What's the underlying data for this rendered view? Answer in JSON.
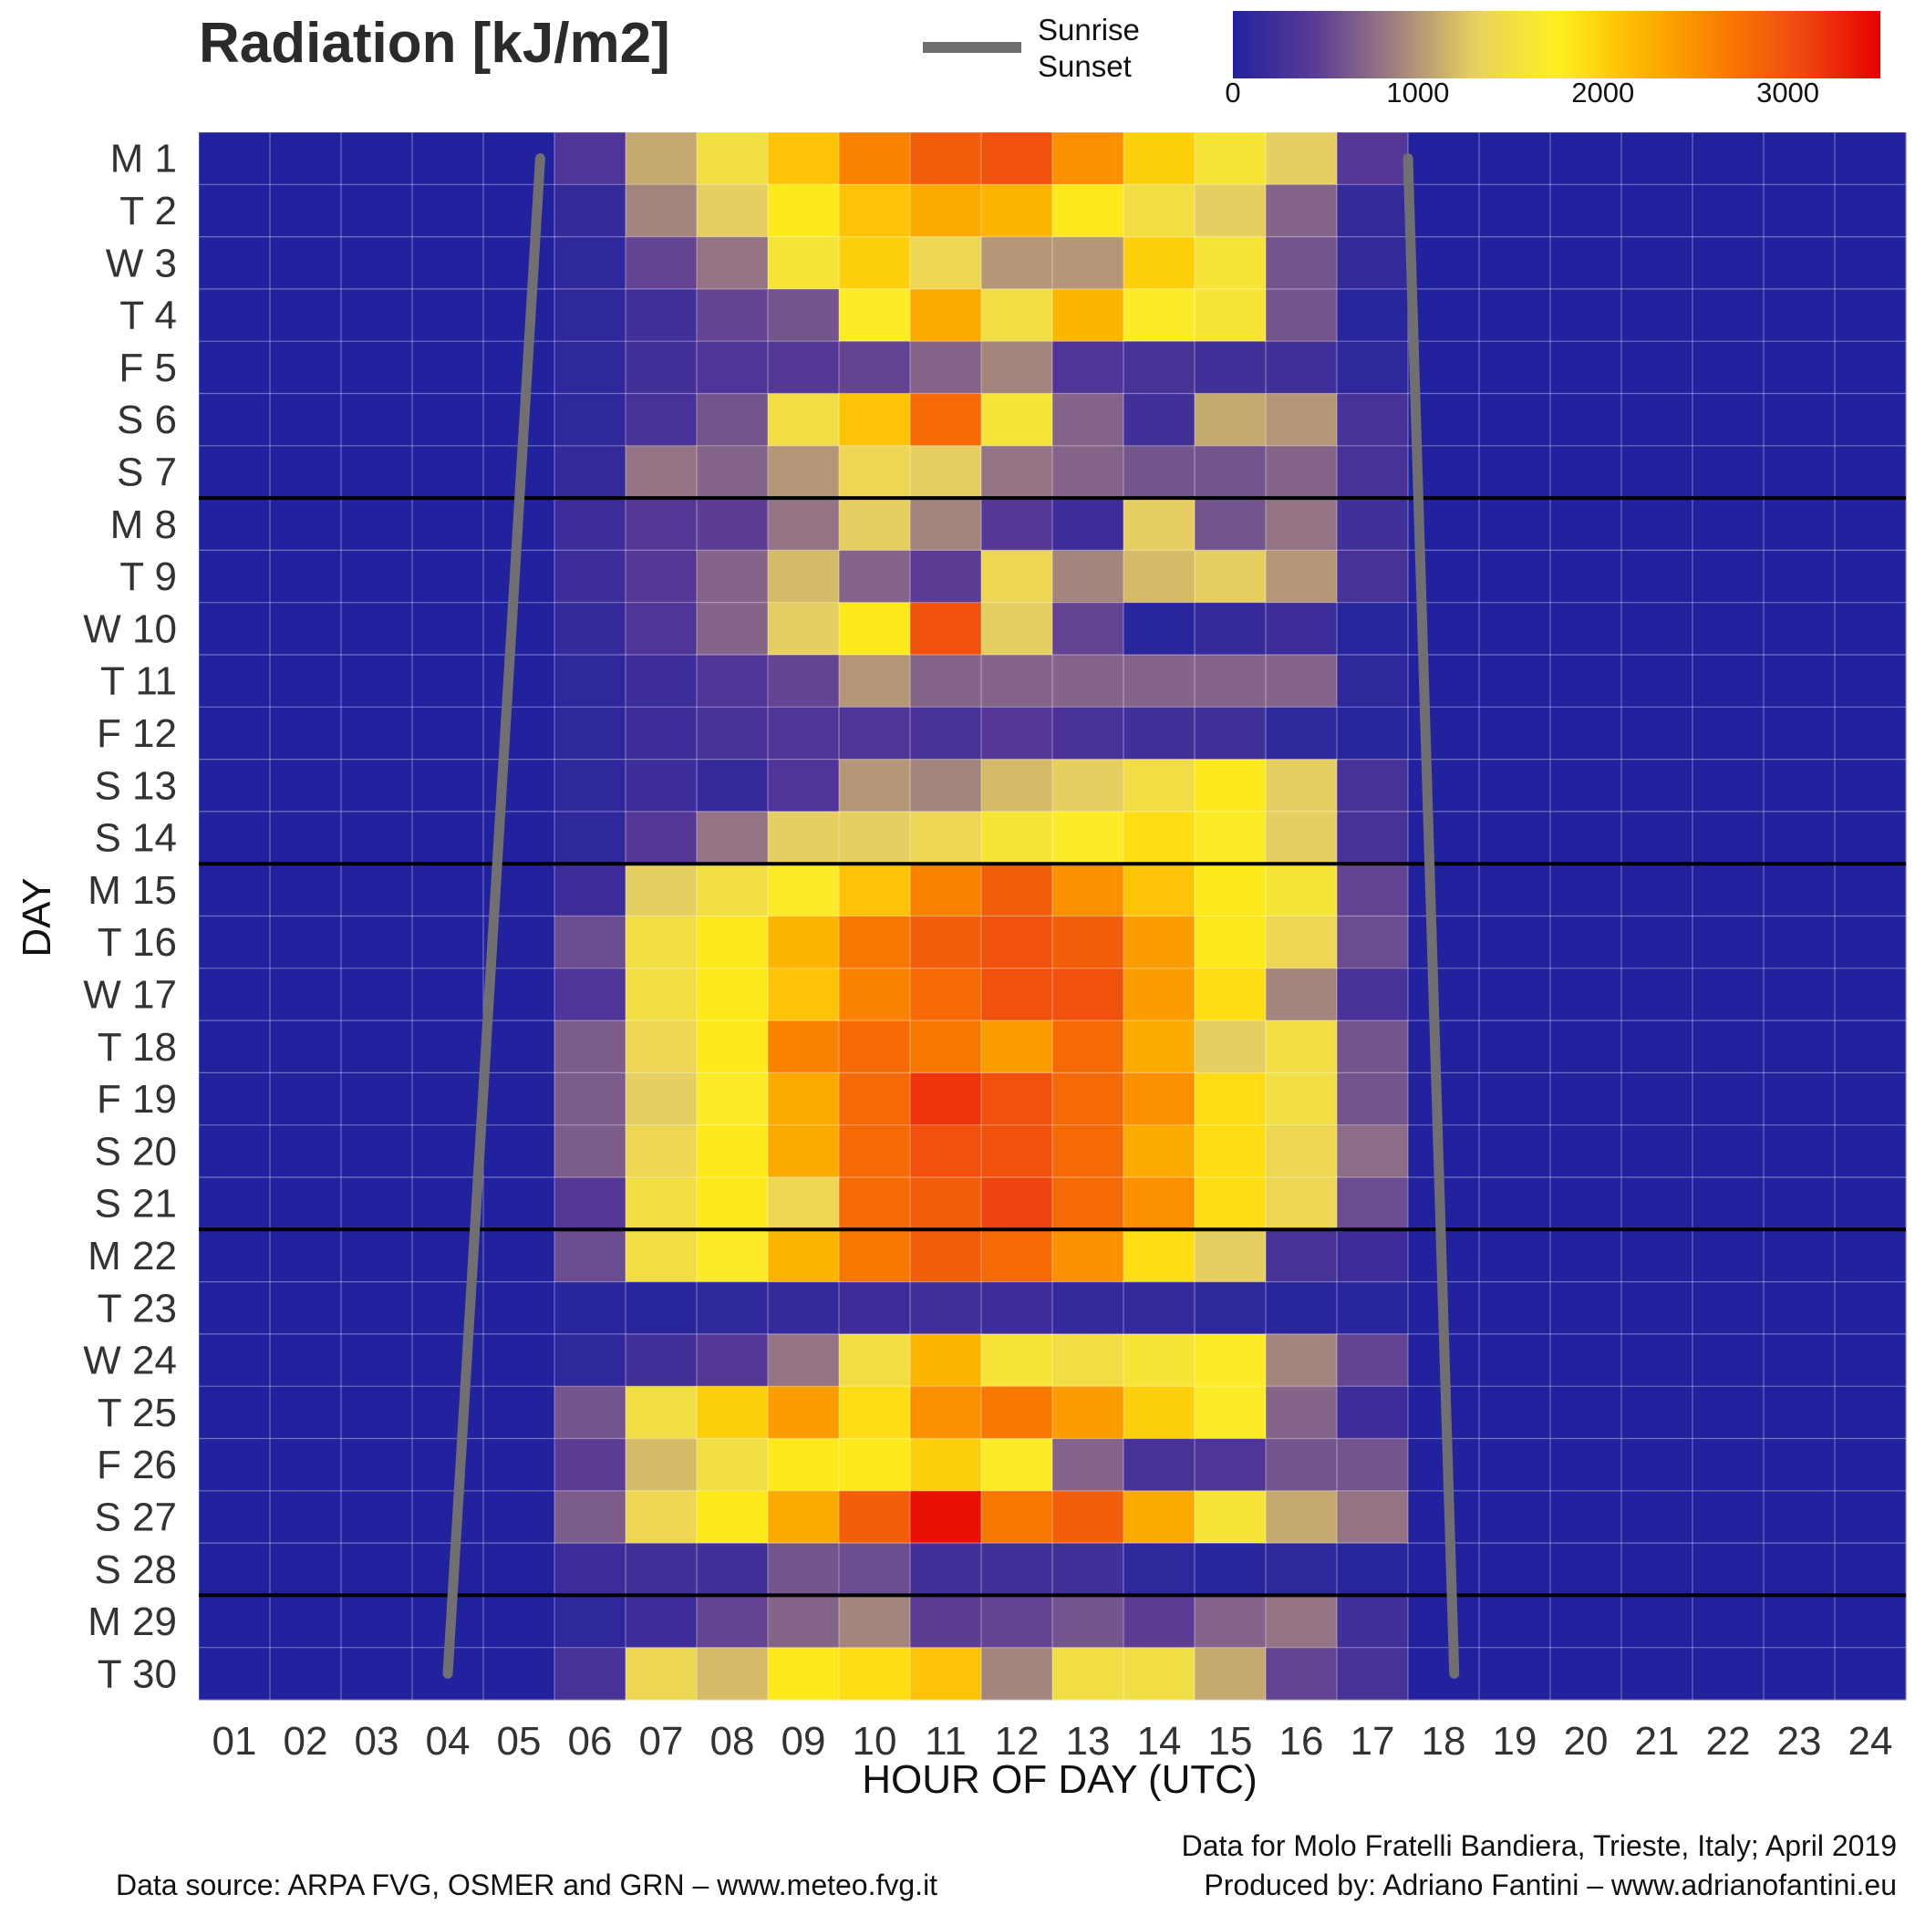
{
  "title": "Radiation [kJ/m2]",
  "legend": {
    "line_label_1": "Sunrise",
    "line_label_2": "Sunset",
    "line_color": "#707070"
  },
  "colorbar": {
    "ticks": [
      "0",
      "1000",
      "2000",
      "3000"
    ],
    "range": [
      0,
      3500
    ],
    "stops": [
      "#22229e",
      "#5a3a95",
      "#a08080",
      "#e8d060",
      "#fef020",
      "#fdb800",
      "#f98000",
      "#ef4a10",
      "#e60000"
    ]
  },
  "footer": {
    "left": "Data source: ARPA FVG, OSMER and GRN – www.meteo.fvg.it",
    "right_1": "Data for Molo Fratelli Bandiera, Trieste, Italy; April 2019",
    "right_2": "Produced by: Adriano Fantini  – www.adrianofantini.eu"
  },
  "chart_data": {
    "type": "heatmap",
    "title": "Radiation [kJ/m2]",
    "xlabel": "HOUR OF DAY (UTC)",
    "ylabel": "DAY",
    "x": [
      "01",
      "02",
      "03",
      "04",
      "05",
      "06",
      "07",
      "08",
      "09",
      "10",
      "11",
      "12",
      "13",
      "14",
      "15",
      "16",
      "17",
      "18",
      "19",
      "20",
      "21",
      "22",
      "23",
      "24"
    ],
    "y": [
      "M 1",
      "T 2",
      "W 3",
      "T 4",
      "F 5",
      "S 6",
      "S 7",
      "M 8",
      "T 9",
      "W 10",
      "T 11",
      "F 12",
      "S 13",
      "S 14",
      "M 15",
      "T 16",
      "W 17",
      "T 18",
      "F 19",
      "S 20",
      "S 21",
      "M 22",
      "T 23",
      "W 24",
      "T 25",
      "F 26",
      "S 27",
      "S 28",
      "M 29",
      "T 30"
    ],
    "values": [
      [
        0,
        0,
        0,
        0,
        0,
        350,
        1100,
        1500,
        2100,
        2600,
        2900,
        3000,
        2500,
        2000,
        1600,
        1300,
        400,
        0,
        0,
        0,
        0,
        0,
        0,
        0
      ],
      [
        0,
        0,
        0,
        0,
        0,
        150,
        900,
        1300,
        1800,
        2100,
        2300,
        2200,
        1800,
        1500,
        1300,
        700,
        150,
        0,
        0,
        0,
        0,
        0,
        0,
        0
      ],
      [
        0,
        0,
        0,
        0,
        0,
        100,
        500,
        800,
        1600,
        2000,
        1400,
        1000,
        1000,
        2000,
        1600,
        600,
        150,
        0,
        0,
        0,
        0,
        0,
        0,
        0
      ],
      [
        0,
        0,
        0,
        0,
        0,
        100,
        250,
        500,
        600,
        1700,
        2300,
        1500,
        2200,
        1700,
        1600,
        600,
        50,
        0,
        0,
        0,
        0,
        0,
        0,
        0
      ],
      [
        0,
        0,
        0,
        0,
        0,
        100,
        250,
        350,
        400,
        500,
        700,
        900,
        350,
        300,
        250,
        250,
        100,
        0,
        0,
        0,
        0,
        0,
        0,
        0
      ],
      [
        0,
        0,
        0,
        0,
        0,
        100,
        300,
        600,
        1500,
        2100,
        2800,
        1600,
        700,
        250,
        1100,
        1000,
        300,
        0,
        0,
        0,
        0,
        0,
        0,
        0
      ],
      [
        0,
        0,
        0,
        0,
        0,
        150,
        800,
        700,
        1000,
        1400,
        1300,
        800,
        700,
        600,
        600,
        700,
        300,
        0,
        0,
        0,
        0,
        0,
        0,
        0
      ],
      [
        0,
        0,
        0,
        0,
        0,
        200,
        400,
        450,
        800,
        1300,
        900,
        400,
        200,
        1300,
        600,
        800,
        250,
        0,
        0,
        0,
        0,
        0,
        0,
        0
      ],
      [
        0,
        0,
        0,
        0,
        0,
        200,
        400,
        700,
        1200,
        700,
        450,
        1400,
        900,
        1200,
        1300,
        1000,
        300,
        0,
        0,
        0,
        0,
        0,
        0,
        0
      ],
      [
        0,
        0,
        0,
        0,
        0,
        150,
        350,
        700,
        1300,
        1800,
        3000,
        1300,
        500,
        50,
        150,
        200,
        50,
        0,
        0,
        0,
        0,
        0,
        0,
        0
      ],
      [
        0,
        0,
        0,
        0,
        0,
        100,
        200,
        350,
        500,
        1000,
        700,
        700,
        700,
        700,
        700,
        700,
        100,
        0,
        0,
        0,
        0,
        0,
        0,
        0
      ],
      [
        0,
        0,
        0,
        0,
        0,
        100,
        200,
        300,
        350,
        350,
        300,
        400,
        300,
        250,
        250,
        100,
        50,
        0,
        0,
        0,
        0,
        0,
        0,
        0
      ],
      [
        0,
        0,
        0,
        0,
        0,
        100,
        200,
        150,
        350,
        1000,
        900,
        1200,
        1300,
        1500,
        1800,
        1300,
        300,
        0,
        0,
        0,
        0,
        0,
        0,
        0
      ],
      [
        0,
        0,
        0,
        0,
        0,
        100,
        400,
        800,
        1300,
        1300,
        1400,
        1600,
        1700,
        1900,
        1700,
        1300,
        300,
        0,
        0,
        0,
        0,
        0,
        0,
        0
      ],
      [
        0,
        0,
        0,
        0,
        0,
        200,
        1300,
        1500,
        1700,
        2100,
        2600,
        2900,
        2500,
        2100,
        1800,
        1600,
        500,
        0,
        0,
        0,
        0,
        0,
        0,
        0
      ],
      [
        0,
        0,
        0,
        0,
        0,
        550,
        1500,
        1800,
        2200,
        2700,
        2900,
        3000,
        2900,
        2400,
        1800,
        1400,
        550,
        0,
        0,
        0,
        0,
        0,
        0,
        0
      ],
      [
        0,
        0,
        0,
        0,
        0,
        350,
        1500,
        1800,
        2100,
        2600,
        2800,
        3000,
        3000,
        2400,
        1900,
        900,
        300,
        0,
        0,
        0,
        0,
        0,
        0,
        0
      ],
      [
        0,
        0,
        0,
        0,
        0,
        650,
        1400,
        1800,
        2600,
        2800,
        2700,
        2400,
        2800,
        2300,
        1300,
        1500,
        600,
        0,
        0,
        0,
        0,
        0,
        0,
        0
      ],
      [
        0,
        0,
        0,
        0,
        0,
        650,
        1300,
        1700,
        2300,
        2800,
        3200,
        3000,
        2800,
        2500,
        1900,
        1500,
        600,
        0,
        0,
        0,
        0,
        0,
        0,
        0
      ],
      [
        0,
        0,
        0,
        0,
        0,
        650,
        1400,
        1800,
        2300,
        2800,
        3000,
        3000,
        2800,
        2300,
        1900,
        1400,
        750,
        0,
        0,
        0,
        0,
        0,
        0,
        0
      ],
      [
        0,
        0,
        0,
        0,
        0,
        400,
        1500,
        1800,
        1400,
        2800,
        2900,
        3100,
        2800,
        2500,
        1900,
        1400,
        550,
        0,
        0,
        0,
        0,
        0,
        0,
        0
      ],
      [
        0,
        0,
        0,
        0,
        0,
        550,
        1500,
        1700,
        2200,
        2700,
        2900,
        2800,
        2500,
        1900,
        1300,
        300,
        200,
        0,
        0,
        0,
        0,
        0,
        0,
        0
      ],
      [
        0,
        0,
        0,
        0,
        0,
        50,
        50,
        100,
        150,
        200,
        250,
        200,
        150,
        150,
        100,
        50,
        50,
        0,
        0,
        0,
        0,
        0,
        0,
        0
      ],
      [
        0,
        0,
        0,
        0,
        0,
        100,
        250,
        400,
        800,
        1500,
        2200,
        1600,
        1500,
        1600,
        1700,
        900,
        500,
        0,
        0,
        0,
        0,
        0,
        0,
        0
      ],
      [
        0,
        0,
        0,
        0,
        0,
        600,
        1500,
        2000,
        2400,
        1900,
        2500,
        2700,
        2400,
        2000,
        1700,
        700,
        200,
        0,
        0,
        0,
        0,
        0,
        0,
        0
      ],
      [
        0,
        0,
        0,
        0,
        0,
        450,
        1200,
        1500,
        1800,
        1800,
        2000,
        1700,
        700,
        300,
        350,
        600,
        600,
        0,
        0,
        0,
        0,
        0,
        0,
        0
      ],
      [
        0,
        0,
        0,
        0,
        0,
        650,
        1400,
        1800,
        2300,
        2900,
        3400,
        2700,
        2900,
        2300,
        1600,
        1100,
        800,
        0,
        0,
        0,
        0,
        0,
        0,
        0
      ],
      [
        0,
        0,
        0,
        0,
        0,
        200,
        250,
        250,
        600,
        550,
        250,
        250,
        250,
        100,
        50,
        100,
        50,
        0,
        0,
        0,
        0,
        0,
        0,
        0
      ],
      [
        0,
        0,
        0,
        0,
        0,
        100,
        200,
        500,
        700,
        900,
        450,
        500,
        600,
        450,
        700,
        800,
        250,
        0,
        0,
        0,
        0,
        0,
        0,
        0
      ],
      [
        0,
        0,
        0,
        0,
        0,
        300,
        1400,
        1200,
        1800,
        1900,
        2100,
        900,
        1500,
        1500,
        1100,
        500,
        300,
        0,
        0,
        0,
        0,
        0,
        0,
        0
      ]
    ],
    "colorscale_range": [
      0,
      3500
    ],
    "sunrise": [
      5.3,
      4.0
    ],
    "sunset": [
      17.5,
      18.15
    ],
    "week_separators_after_days": [
      7,
      14,
      21,
      28
    ]
  }
}
